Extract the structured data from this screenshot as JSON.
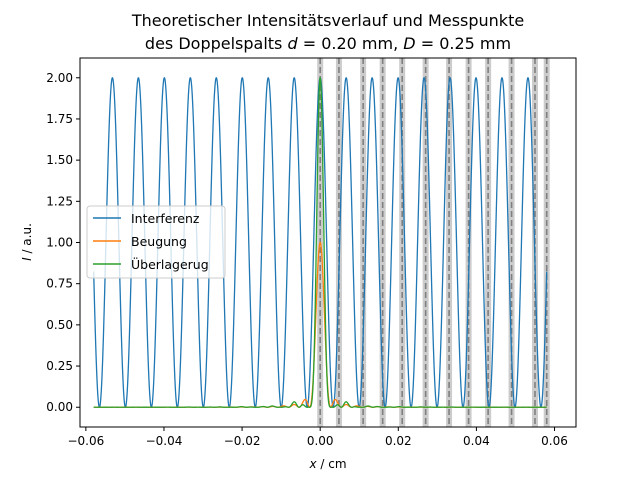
{
  "chart_data": {
    "type": "line",
    "title_line1": "Theoretischer Intensitätsverlauf und Messpunkte",
    "title_line2_prefix": "des Doppelspalts ",
    "title_line2_d": "d",
    "title_line2_mid": " = 0.20 mm, ",
    "title_line2_D": "D",
    "title_line2_suffix": " = 0.25 mm",
    "xlabel_var": "x",
    "xlabel_unit": " / cm",
    "ylabel_var": "I",
    "ylabel_unit": " / a.u.",
    "xlim": [
      -0.0615,
      0.0655
    ],
    "ylim": [
      -0.12,
      2.12
    ],
    "xticks": [
      -0.06,
      -0.04,
      -0.02,
      0.0,
      0.02,
      0.04,
      0.06
    ],
    "xtick_labels": [
      "−0.06",
      "−0.04",
      "−0.02",
      "0.00",
      "0.02",
      "0.04",
      "0.06"
    ],
    "yticks": [
      0.0,
      0.25,
      0.5,
      0.75,
      1.0,
      1.25,
      1.5,
      1.75,
      2.0
    ],
    "ytick_labels": [
      "0.00",
      "0.25",
      "0.50",
      "0.75",
      "1.00",
      "1.25",
      "1.50",
      "1.75",
      "2.00"
    ],
    "grid": false,
    "legend_position": "center-left",
    "series": [
      {
        "name": "Interferenz",
        "color": "#1f77b4",
        "x_range": [
          -0.058,
          0.058
        ],
        "peak": 2.0,
        "period": 0.00665,
        "peak_positions": [
          -0.0532,
          -0.0466,
          -0.0399,
          -0.0333,
          -0.0266,
          -0.02,
          -0.0133,
          -0.0067,
          0.0,
          0.0067,
          0.0133,
          0.02,
          0.0266,
          0.0333,
          0.0399,
          0.0466,
          0.0532
        ]
      },
      {
        "name": "Beugung",
        "color": "#ff7f0e",
        "x_range": [
          -0.058,
          0.058
        ],
        "peak": 1.0,
        "central_half_width": 0.0027
      },
      {
        "name": "Überlagerug",
        "color": "#2ca02c",
        "x_range": [
          -0.058,
          0.058
        ],
        "peak": 2.0,
        "side_peaks": [
          {
            "x": -0.0068,
            "y": 0.09
          },
          {
            "x": 0.0065,
            "y": 0.09
          },
          {
            "x": -0.0135,
            "y": 0.03
          },
          {
            "x": 0.0135,
            "y": 0.03
          }
        ]
      }
    ],
    "measurement_points": {
      "line_color": "#808080",
      "band_color": "#cccccc",
      "x": [
        0.0,
        0.0048,
        0.011,
        0.016,
        0.021,
        0.027,
        0.033,
        0.038,
        0.043,
        0.049,
        0.055,
        0.058
      ]
    }
  }
}
